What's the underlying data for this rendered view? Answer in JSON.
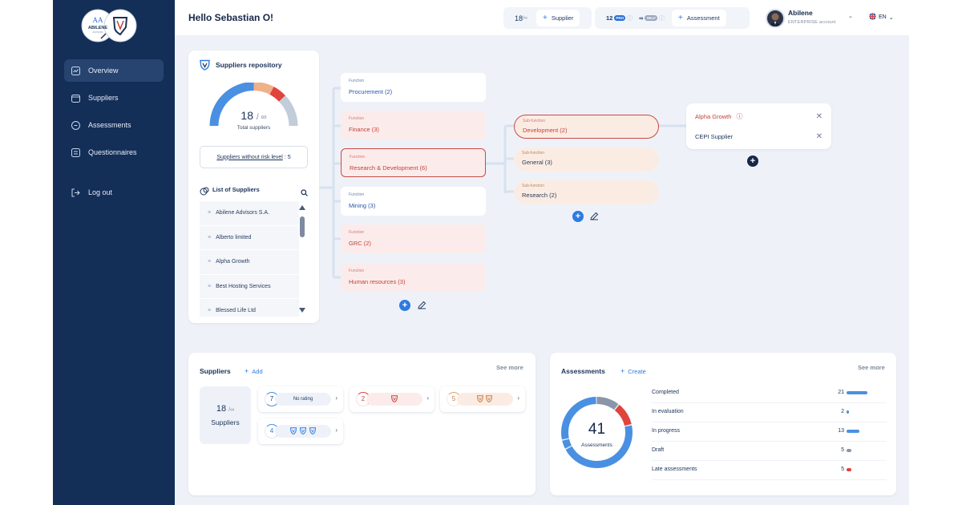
{
  "topbar": {
    "greeting": "Hello Sebastian O!",
    "supplier_count": "18",
    "supplier_limit": "/∞",
    "add_supplier": "Supplier",
    "assessment_count": "12",
    "badge_pro": "PRO",
    "assessment_limit": "∞",
    "badge_self": "SELF",
    "add_assessment": "Assessment",
    "company": "Abilene",
    "account_type": "ENTERPRISE account",
    "language": "EN"
  },
  "sidebar": {
    "logo_text": "ABILENE",
    "logo_sub": "ADVISORS",
    "items": [
      {
        "label": "Overview",
        "icon": "chart-icon"
      },
      {
        "label": "Suppliers",
        "icon": "folder-icon"
      },
      {
        "label": "Assessments",
        "icon": "assessment-icon"
      },
      {
        "label": "Questionnaires",
        "icon": "list-icon"
      }
    ],
    "logout": "Log out"
  },
  "repository": {
    "title": "Suppliers repository",
    "total": "18",
    "total_limit": "/ ∞",
    "total_label": "Total suppliers",
    "no_risk_label": "Suppliers without risk level",
    "no_risk_value": ": 5",
    "list_title": "List of Suppliers",
    "list": [
      "Abilene Advisors S.A.",
      "Alberto limited",
      "Alpha Growth",
      "Best Hosting Services",
      "Blessed Life Ltd"
    ]
  },
  "functions": [
    {
      "key": "Function",
      "label": "Procurement (2)"
    },
    {
      "key": "Function",
      "label": "Finance (3)"
    },
    {
      "key": "Function",
      "label": "Research & Development (6)"
    },
    {
      "key": "Function",
      "label": "Mining (3)"
    },
    {
      "key": "Function",
      "label": "GRC (2)"
    },
    {
      "key": "Function",
      "label": "Human resources (3)"
    }
  ],
  "subfunctions": [
    {
      "key": "Sub-function",
      "label": "Development (2)"
    },
    {
      "key": "Sub-function",
      "label": "General (3)"
    },
    {
      "key": "Sub-function",
      "label": "Research (2)"
    }
  ],
  "detail": {
    "items": [
      "Alpha Growth",
      "CEPI Supplier"
    ]
  },
  "suppliers_panel": {
    "title": "Suppliers",
    "add": "Add",
    "see_more": "See more",
    "total": "18",
    "total_limit": "/∞",
    "total_label": "Suppliers",
    "ratings": [
      {
        "count": "7",
        "label": "No rating",
        "color": "#4a90e2"
      },
      {
        "count": "2",
        "label": "",
        "color": "#e0443b"
      },
      {
        "count": "5",
        "label": "",
        "color": "#e8a06a"
      },
      {
        "count": "4",
        "label": "",
        "color": "#4a90e2"
      }
    ]
  },
  "assessments_panel": {
    "title": "Assessments",
    "create": "Create",
    "see_more": "See more",
    "total": "41",
    "total_label": "Assessments",
    "rows": [
      {
        "label": "Completed",
        "count": "21",
        "value": 21,
        "color": "#4a90e2"
      },
      {
        "label": "In evaluation",
        "count": "2",
        "value": 2,
        "color": "#4a90e2"
      },
      {
        "label": "In progress",
        "count": "13",
        "value": 13,
        "color": "#4a90e2"
      },
      {
        "label": "Draft",
        "count": "5",
        "value": 5,
        "color": "#8a96a8"
      },
      {
        "label": "Late assessments",
        "count": "5",
        "value": 5,
        "color": "#e0443b"
      }
    ]
  }
}
